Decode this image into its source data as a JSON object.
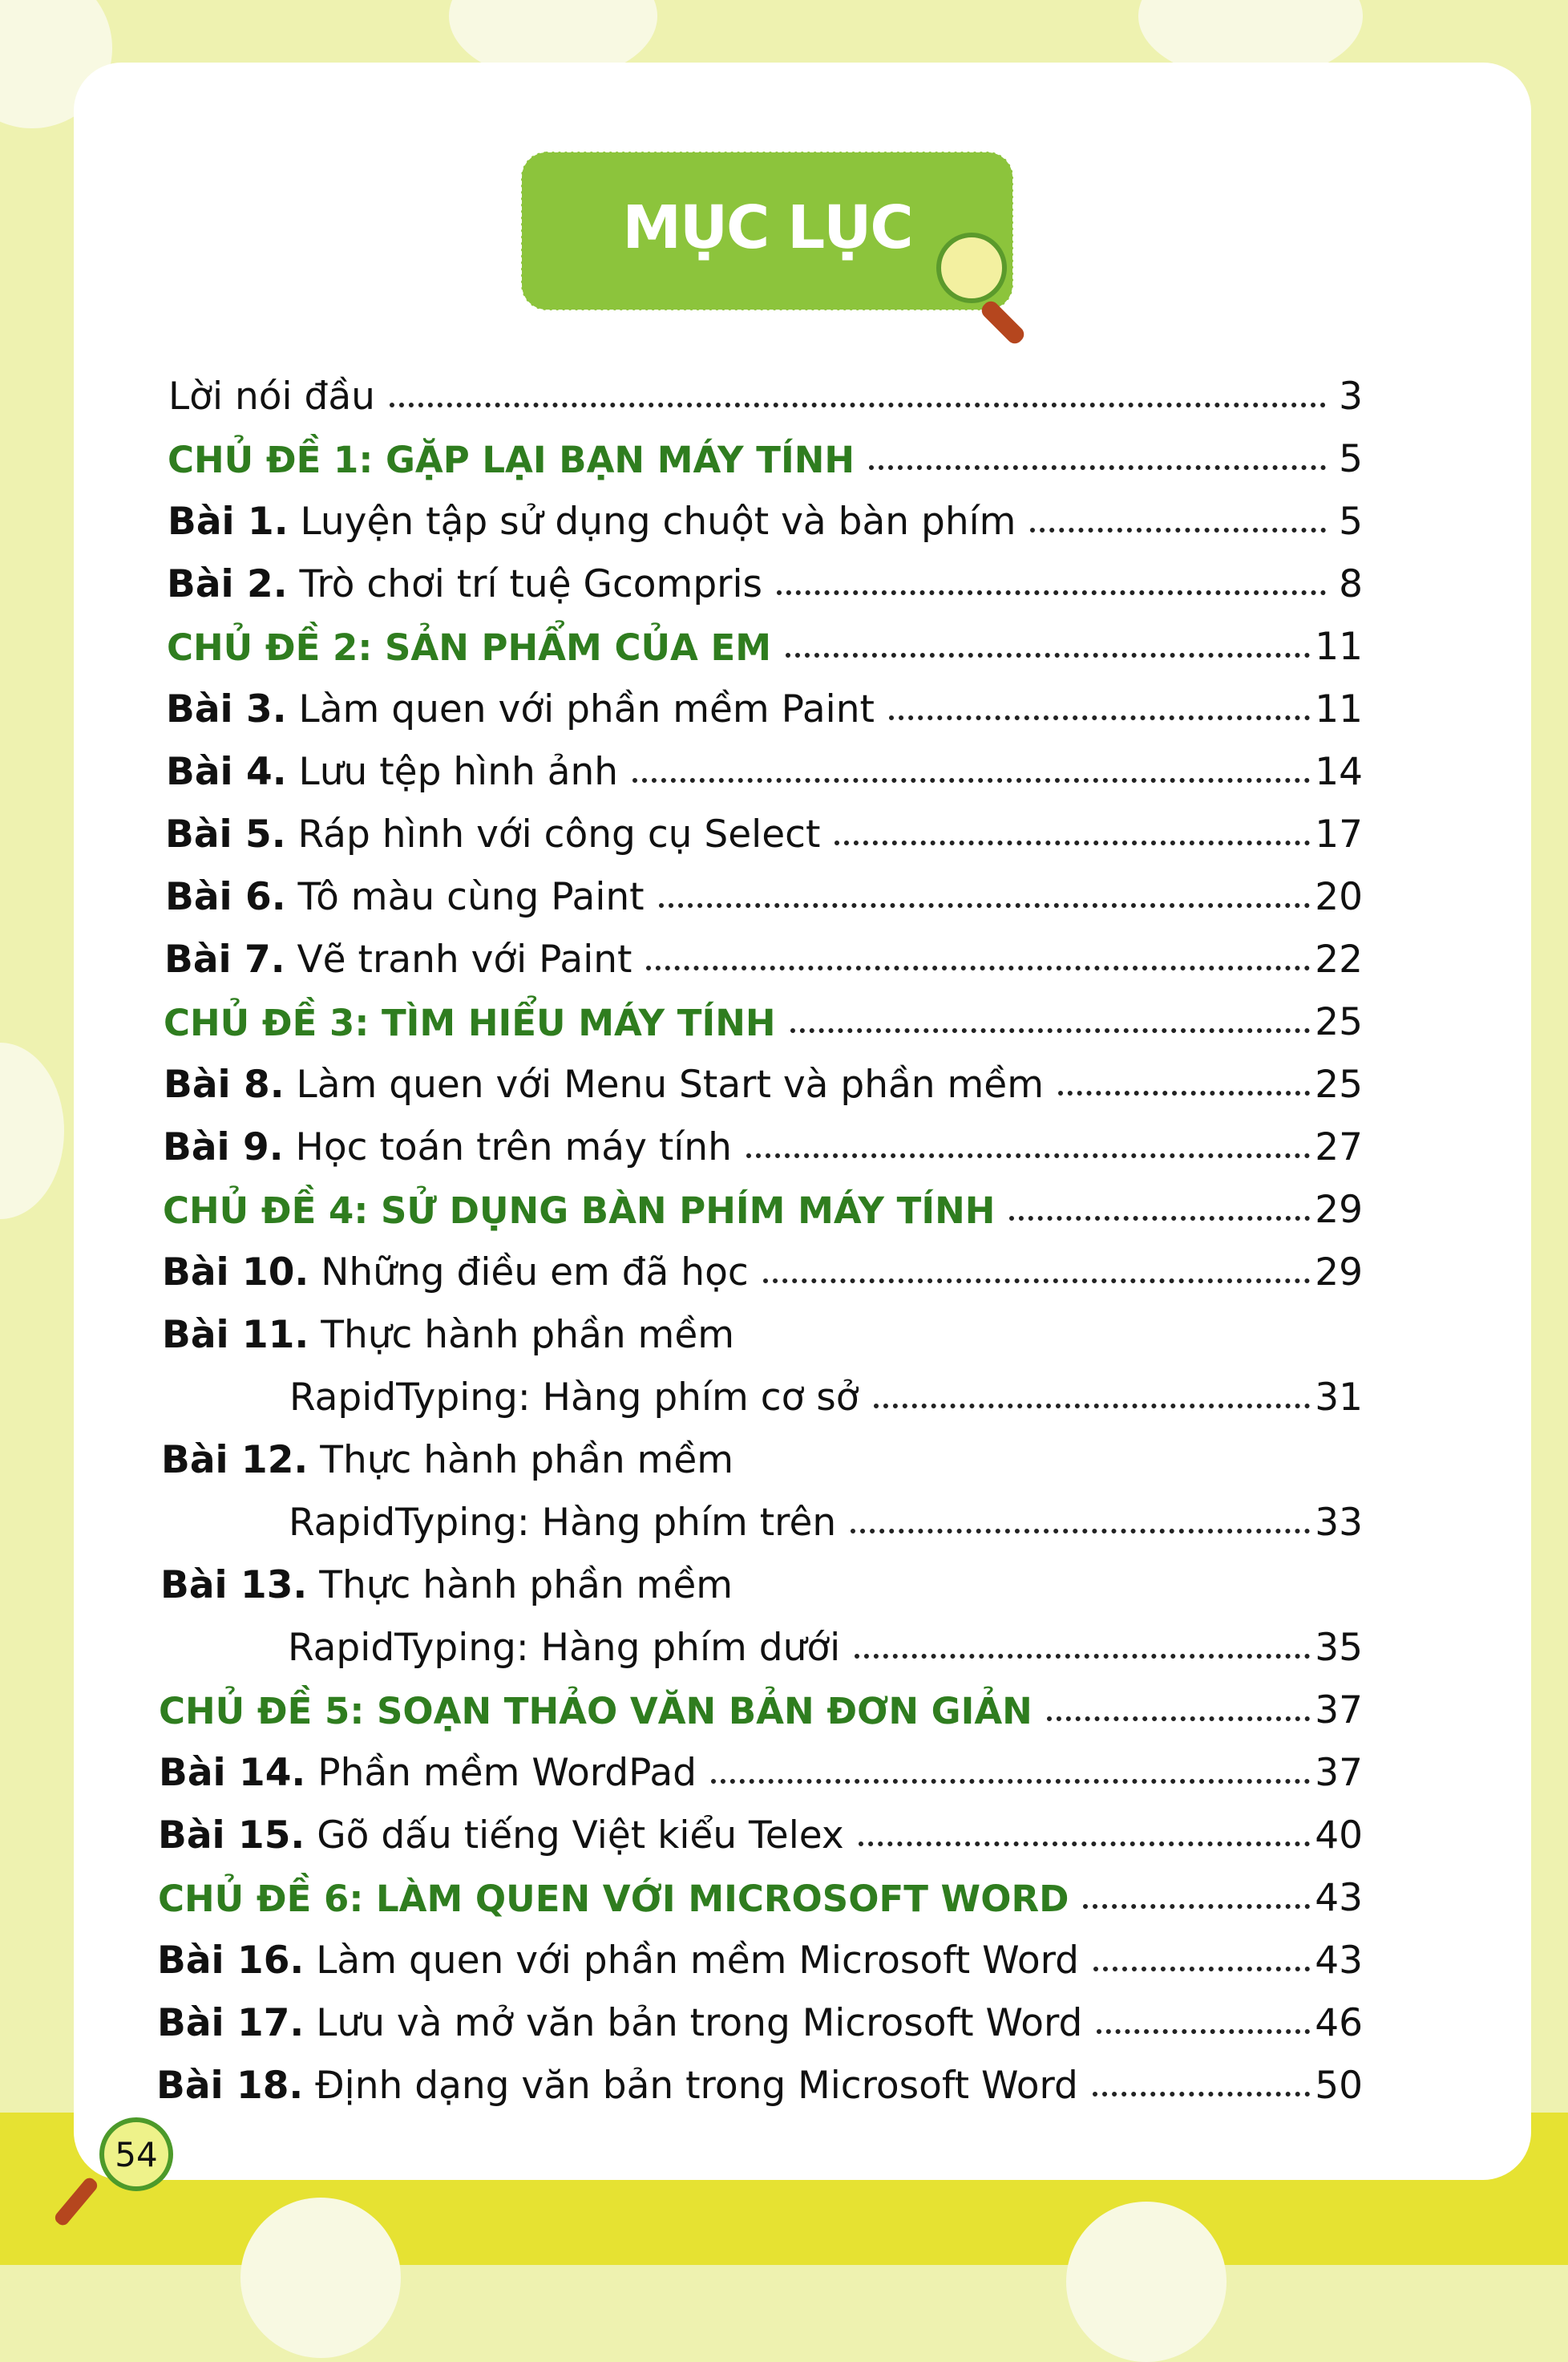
{
  "title": "MỤC LỤC",
  "page_number": "54",
  "colors": {
    "chapter": "#2f7d1f",
    "title_bg": "#8cc43c",
    "background": "#eef2b0",
    "band": "#e6e232"
  },
  "entries": [
    {
      "type": "plain",
      "prefix": "",
      "text": "Lời nói đầu",
      "page": "3"
    },
    {
      "type": "chapter",
      "prefix": "",
      "text": "CHỦ ĐỀ 1: GẶP LẠI BẠN MÁY TÍNH",
      "page": "5"
    },
    {
      "type": "lesson",
      "prefix": "Bài 1.",
      "text": "Luyện tập sử dụng chuột và bàn phím",
      "page": "5"
    },
    {
      "type": "lesson",
      "prefix": "Bài 2.",
      "text": "Trò chơi trí tuệ Gcompris",
      "page": "8"
    },
    {
      "type": "chapter",
      "prefix": "",
      "text": "CHỦ ĐỀ 2: SẢN PHẨM CỦA EM",
      "page": "11"
    },
    {
      "type": "lesson",
      "prefix": "Bài 3.",
      "text": "Làm quen với phần mềm Paint",
      "page": "11"
    },
    {
      "type": "lesson",
      "prefix": "Bài 4.",
      "text": "Lưu tệp hình ảnh",
      "page": "14"
    },
    {
      "type": "lesson",
      "prefix": "Bài 5.",
      "text": "Ráp hình với công cụ Select",
      "page": "17"
    },
    {
      "type": "lesson",
      "prefix": "Bài 6.",
      "text": "Tô màu cùng Paint",
      "page": "20"
    },
    {
      "type": "lesson",
      "prefix": "Bài 7.",
      "text": "Vẽ tranh với Paint",
      "page": "22"
    },
    {
      "type": "chapter",
      "prefix": "",
      "text": "CHỦ ĐỀ 3: TÌM HIỂU MÁY TÍNH",
      "page": "25"
    },
    {
      "type": "lesson",
      "prefix": "Bài 8.",
      "text": "Làm quen với Menu Start và phần mềm",
      "page": "25"
    },
    {
      "type": "lesson",
      "prefix": "Bài 9.",
      "text": "Học toán trên máy tính",
      "page": "27"
    },
    {
      "type": "chapter",
      "prefix": "",
      "text": "CHỦ ĐỀ 4: SỬ DỤNG BÀN PHÍM MÁY TÍNH",
      "page": "29"
    },
    {
      "type": "lesson",
      "prefix": "Bài 10.",
      "text": "Những điều em đã học",
      "page": "29"
    },
    {
      "type": "lesson",
      "prefix": "Bài 11.",
      "text": "Thực hành phần mềm",
      "page": ""
    },
    {
      "type": "cont",
      "prefix": "",
      "text": "RapidTyping: Hàng phím cơ sở",
      "page": "31"
    },
    {
      "type": "lesson",
      "prefix": "Bài 12.",
      "text": "Thực hành phần mềm",
      "page": ""
    },
    {
      "type": "cont",
      "prefix": "",
      "text": "RapidTyping: Hàng phím trên",
      "page": "33"
    },
    {
      "type": "lesson",
      "prefix": "Bài 13.",
      "text": "Thực hành phần mềm",
      "page": ""
    },
    {
      "type": "cont",
      "prefix": "",
      "text": "RapidTyping: Hàng phím dưới",
      "page": "35"
    },
    {
      "type": "chapter",
      "prefix": "",
      "text": "CHỦ ĐỀ 5: SOẠN THẢO VĂN BẢN ĐƠN GIẢN",
      "page": "37"
    },
    {
      "type": "lesson",
      "prefix": "Bài 14.",
      "text": "Phần mềm WordPad",
      "page": "37"
    },
    {
      "type": "lesson",
      "prefix": "Bài 15.",
      "text": "Gõ dấu tiếng Việt kiểu Telex",
      "page": "40"
    },
    {
      "type": "chapter",
      "prefix": "",
      "text": "CHỦ ĐỀ 6: LÀM QUEN VỚI MICROSOFT WORD",
      "page": "43"
    },
    {
      "type": "lesson",
      "prefix": "Bài 16.",
      "text": "Làm quen với phần mềm Microsoft Word",
      "page": "43"
    },
    {
      "type": "lesson",
      "prefix": "Bài 17.",
      "text": "Lưu và mở văn bản trong Microsoft Word",
      "page": "46"
    },
    {
      "type": "lesson",
      "prefix": "Bài 18.",
      "text": "Định dạng văn bản trong Microsoft Word",
      "page": "50"
    }
  ]
}
